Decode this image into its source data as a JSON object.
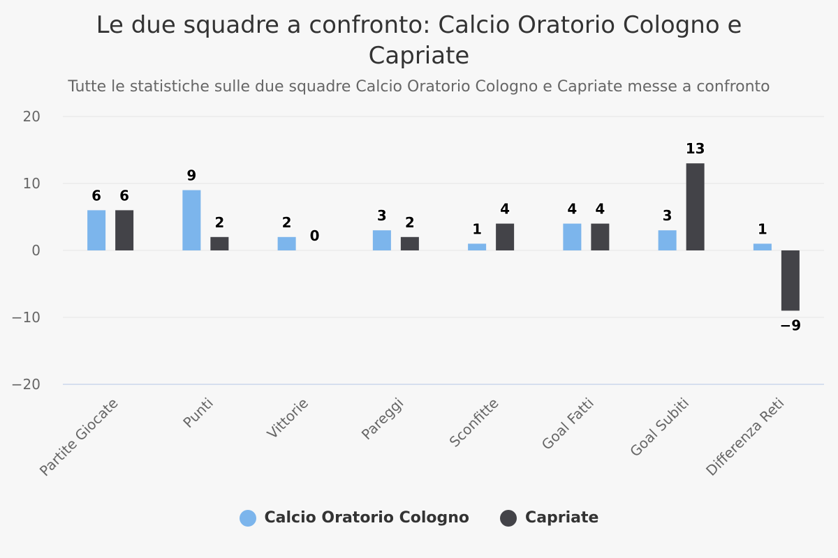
{
  "chart_data": {
    "type": "bar",
    "title": "Le due squadre a confronto: Calcio Oratorio Cologno e Capriate",
    "subtitle": "Tutte le statistiche sulle due squadre Calcio Oratorio Cologno e Capriate messe a confronto",
    "categories": [
      "Partite Giocate",
      "Punti",
      "Vittorie",
      "Pareggi",
      "Sconfitte",
      "Goal Fatti",
      "Goal Subiti",
      "Differenza Reti"
    ],
    "series": [
      {
        "name": "Calcio Oratorio Cologno",
        "color": "#7cb5ec",
        "values": [
          6,
          9,
          2,
          3,
          1,
          4,
          3,
          1
        ]
      },
      {
        "name": "Capriate",
        "color": "#434348",
        "values": [
          6,
          2,
          0,
          2,
          4,
          4,
          13,
          -9
        ]
      }
    ],
    "ylim": [
      -20,
      20
    ],
    "yticks": [
      20,
      10,
      0,
      -10,
      -20
    ],
    "ytick_labels": [
      "20",
      "10",
      "0",
      "−10",
      "−20"
    ],
    "data_labels": [
      [
        "6",
        "9",
        "2",
        "3",
        "1",
        "4",
        "3",
        "1"
      ],
      [
        "6",
        "2",
        "0",
        "2",
        "4",
        "4",
        "13",
        "−9"
      ]
    ],
    "xlabel": "",
    "ylabel": "",
    "grid": true,
    "legend_position": "bottom-center"
  }
}
